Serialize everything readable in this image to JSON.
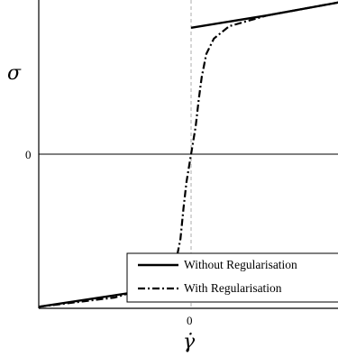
{
  "chart_data": {
    "type": "line",
    "xlabel": "γ̇",
    "ylabel": "σ",
    "x_ticks": [
      "0"
    ],
    "y_ticks": [
      "0"
    ],
    "xlim": [
      -1,
      1
    ],
    "ylim": [
      -1,
      1
    ],
    "grid": false,
    "legend_position": "bottom-right",
    "series": [
      {
        "name": "Without Regularisation",
        "style": "solid",
        "color": "#000000",
        "segments": [
          [
            [
              -1,
              -0.99
            ],
            [
              -0.2,
              -0.87
            ],
            [
              0,
              -0.82
            ]
          ],
          [
            [
              0,
              0.82
            ],
            [
              0.5,
              0.9
            ],
            [
              1,
              0.99
            ]
          ]
        ]
      },
      {
        "name": "With Regularisation",
        "style": "dash-dot",
        "color": "#000000",
        "segments": [
          [
            [
              -1,
              -0.99
            ],
            [
              -0.5,
              -0.93
            ],
            [
              -0.2,
              -0.84
            ],
            [
              -0.1,
              -0.7
            ],
            [
              -0.07,
              -0.55
            ],
            [
              -0.05,
              -0.35
            ],
            [
              -0.03,
              -0.18
            ],
            [
              0,
              0
            ],
            [
              0.03,
              0.18
            ],
            [
              0.05,
              0.35
            ],
            [
              0.07,
              0.5
            ],
            [
              0.1,
              0.65
            ],
            [
              0.15,
              0.75
            ],
            [
              0.25,
              0.83
            ],
            [
              0.5,
              0.9
            ],
            [
              1,
              0.99
            ]
          ]
        ]
      }
    ]
  }
}
